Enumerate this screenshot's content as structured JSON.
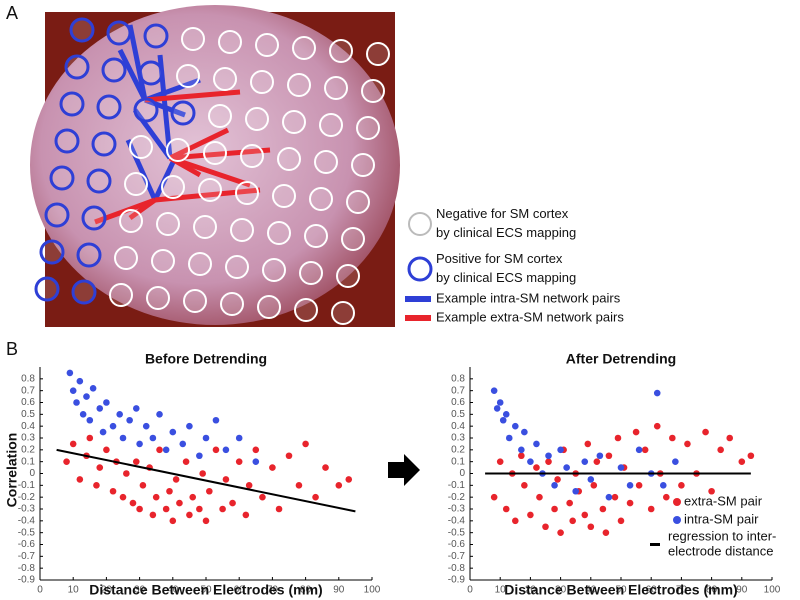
{
  "panel_labels": [
    "A",
    "B"
  ],
  "panel_a": {
    "legend": [
      {
        "lines": [
          "Negative for SM cortex",
          "by clinical ECS mapping"
        ],
        "color": "#ffffff"
      },
      {
        "lines": [
          "Positive for SM cortex",
          "by clinical ECS mapping"
        ],
        "color": "#2e3fd6"
      },
      {
        "lines": [
          "Example intra-SM network pairs"
        ],
        "color": "#2e3fd6"
      },
      {
        "lines": [
          "Example extra-SM network pairs"
        ],
        "color": "#e8242c"
      }
    ]
  },
  "chart_data": [
    {
      "type": "scatter",
      "title": "Before Detrending",
      "x_label": "Distance Between Electrodes (mm)",
      "y_label": "Correlation",
      "xlim": [
        0,
        100
      ],
      "ylim": [
        -0.9,
        0.9
      ],
      "xticks": [
        0,
        10,
        20,
        30,
        40,
        50,
        60,
        70,
        80,
        90,
        100
      ],
      "yticks": [
        -0.9,
        -0.8,
        -0.7,
        -0.6,
        -0.5,
        -0.4,
        -0.3,
        -0.2,
        -0.1,
        0,
        0.1,
        0.2,
        0.3,
        0.4,
        0.5,
        0.6,
        0.7,
        0.8
      ],
      "series": [
        {
          "color": "#e8242c",
          "x": [
            8,
            10,
            12,
            14,
            15,
            17,
            18,
            20,
            22,
            23,
            25,
            26,
            28,
            29,
            30,
            31,
            33,
            34,
            35,
            36,
            38,
            39,
            40,
            41,
            42,
            44,
            45,
            46,
            48,
            49,
            50,
            51,
            53,
            55,
            56,
            58,
            60,
            62,
            63,
            65,
            67,
            70,
            72,
            75,
            78,
            80,
            83,
            86,
            90,
            93
          ],
          "values": [
            0.1,
            0.25,
            -0.05,
            0.15,
            0.3,
            -0.1,
            0.05,
            0.2,
            -0.15,
            0.1,
            -0.2,
            0,
            -0.25,
            0.1,
            -0.3,
            -0.1,
            0.05,
            -0.35,
            -0.2,
            0.2,
            -0.3,
            -0.15,
            -0.4,
            -0.05,
            -0.25,
            0.1,
            -0.35,
            -0.2,
            -0.3,
            0,
            -0.4,
            -0.15,
            0.2,
            -0.3,
            -0.05,
            -0.25,
            0.1,
            -0.35,
            -0.1,
            0.2,
            -0.2,
            0.05,
            -0.3,
            0.15,
            -0.1,
            0.25,
            -0.2,
            0.05,
            -0.1,
            -0.05
          ]
        },
        {
          "color": "#3a4fe0",
          "x": [
            9,
            10,
            11,
            12,
            13,
            14,
            15,
            16,
            18,
            19,
            20,
            22,
            24,
            25,
            27,
            29,
            30,
            32,
            34,
            36,
            38,
            40,
            43,
            45,
            48,
            50,
            53,
            56,
            60,
            65
          ],
          "values": [
            0.85,
            0.7,
            0.6,
            0.78,
            0.5,
            0.65,
            0.45,
            0.72,
            0.55,
            0.35,
            0.6,
            0.4,
            0.5,
            0.3,
            0.45,
            0.55,
            0.25,
            0.4,
            0.3,
            0.5,
            0.2,
            0.35,
            0.25,
            0.4,
            0.15,
            0.3,
            0.45,
            0.2,
            0.3,
            0.1
          ]
        }
      ],
      "regression": {
        "color": "#000000",
        "x": [
          5,
          95
        ],
        "y": [
          0.2,
          -0.32
        ]
      }
    },
    {
      "type": "scatter",
      "title": "After Detrending",
      "x_label": "Distance Between Electrodes (mm)",
      "xlim": [
        0,
        100
      ],
      "ylim": [
        -0.9,
        0.9
      ],
      "xticks": [
        0,
        10,
        20,
        30,
        40,
        50,
        60,
        70,
        80,
        90,
        100
      ],
      "yticks": [
        -0.9,
        -0.8,
        -0.7,
        -0.6,
        -0.5,
        -0.4,
        -0.3,
        -0.2,
        -0.1,
        0,
        0.1,
        0.2,
        0.3,
        0.4,
        0.5,
        0.6,
        0.7,
        0.8
      ],
      "series": [
        {
          "name": "extra-SM pair",
          "color": "#e8242c",
          "x": [
            8,
            10,
            12,
            14,
            15,
            17,
            18,
            20,
            22,
            23,
            25,
            26,
            28,
            29,
            30,
            31,
            33,
            34,
            35,
            36,
            38,
            39,
            40,
            41,
            42,
            44,
            45,
            46,
            48,
            49,
            50,
            51,
            53,
            55,
            56,
            58,
            60,
            62,
            63,
            65,
            67,
            70,
            72,
            75,
            78,
            80,
            83,
            86,
            90,
            93
          ],
          "values": [
            -0.2,
            0.1,
            -0.3,
            0,
            -0.4,
            0.15,
            -0.1,
            -0.35,
            0.05,
            -0.2,
            -0.45,
            0.1,
            -0.3,
            -0.05,
            -0.5,
            0.2,
            -0.25,
            -0.4,
            0,
            -0.15,
            -0.35,
            0.25,
            -0.45,
            -0.1,
            0.1,
            -0.3,
            -0.5,
            0.15,
            -0.2,
            0.3,
            -0.4,
            0.05,
            -0.25,
            0.35,
            -0.1,
            0.2,
            -0.3,
            0.4,
            0,
            -0.2,
            0.3,
            -0.1,
            0.25,
            0,
            0.35,
            -0.15,
            0.2,
            0.3,
            0.1,
            0.15
          ]
        },
        {
          "name": "intra-SM pair",
          "color": "#3a4fe0",
          "x": [
            8,
            9,
            10,
            11,
            12,
            13,
            15,
            17,
            18,
            20,
            22,
            24,
            26,
            28,
            30,
            32,
            35,
            38,
            40,
            43,
            46,
            50,
            53,
            56,
            60,
            62,
            64,
            68
          ],
          "values": [
            0.7,
            0.55,
            0.6,
            0.45,
            0.5,
            0.3,
            0.4,
            0.2,
            0.35,
            0.1,
            0.25,
            0,
            0.15,
            -0.1,
            0.2,
            0.05,
            -0.15,
            0.1,
            -0.05,
            0.15,
            -0.2,
            0.05,
            -0.1,
            0.2,
            0,
            0.68,
            -0.1,
            0.1
          ]
        }
      ],
      "regression": {
        "name": [
          "regression to inter-",
          "electrode distance"
        ],
        "color": "#000000",
        "x": [
          5,
          93
        ],
        "y": [
          0,
          0
        ]
      }
    }
  ]
}
